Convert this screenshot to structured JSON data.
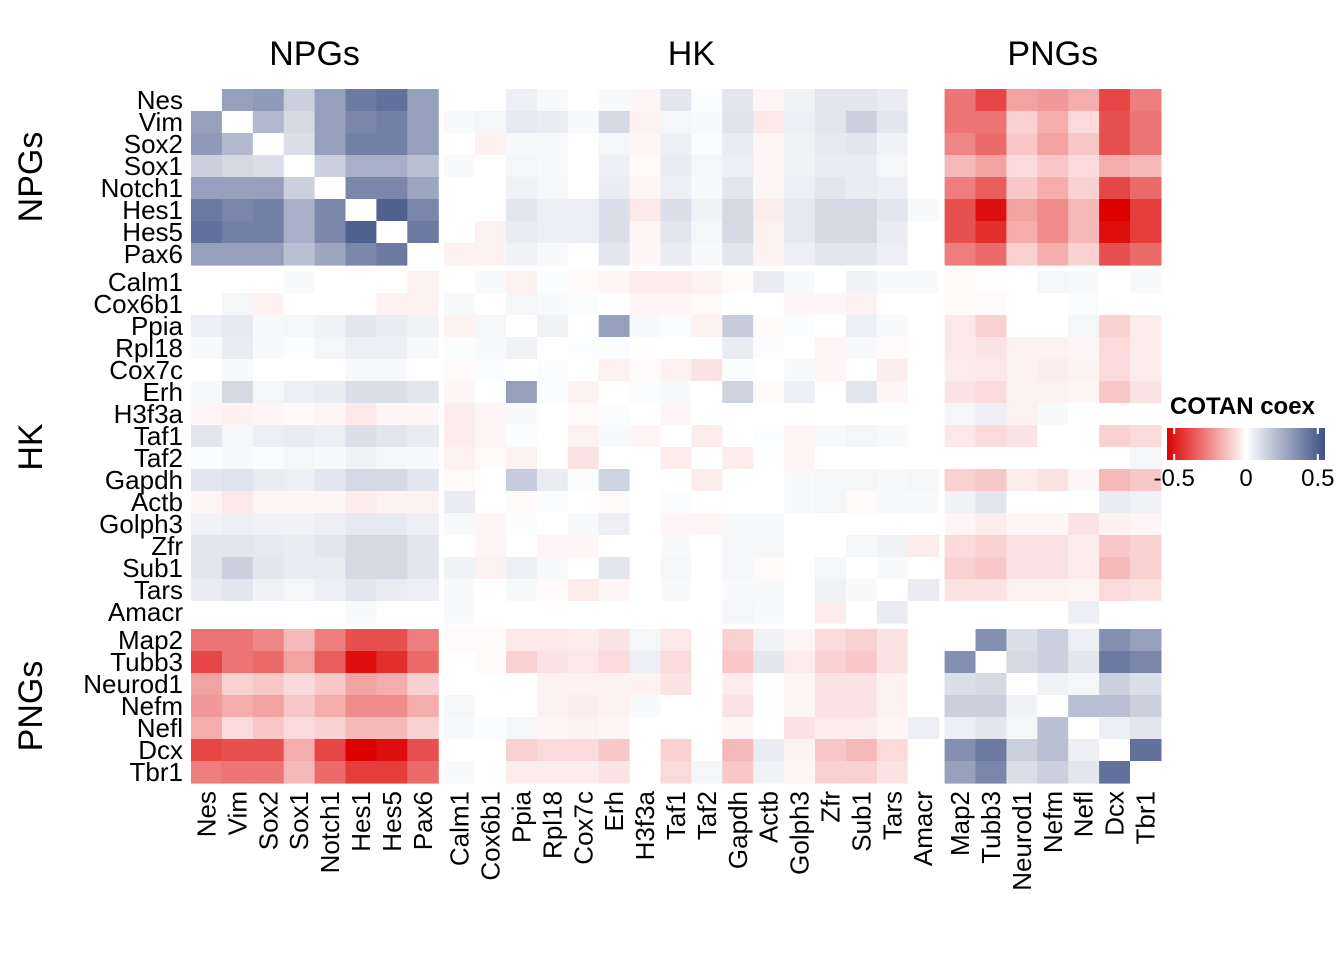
{
  "chart_data": {
    "type": "heatmap",
    "legend": {
      "title": "COTAN coex",
      "ticks": [
        -0.5,
        0,
        0.5
      ],
      "tick_labels": [
        "-0.5",
        "0",
        "0.5"
      ],
      "range": [
        -0.55,
        0.55
      ],
      "colors": {
        "low": "#dd0000",
        "mid": "#ffffff",
        "high": "#3e5185"
      }
    },
    "groups": [
      {
        "name": "NPGs",
        "genes": [
          "Nes",
          "Vim",
          "Sox2",
          "Sox1",
          "Notch1",
          "Hes1",
          "Hes5",
          "Pax6"
        ]
      },
      {
        "name": "HK",
        "genes": [
          "Calm1",
          "Cox6b1",
          "Ppia",
          "Rpl18",
          "Cox7c",
          "Erh",
          "H3f3a",
          "Taf1",
          "Taf2",
          "Gapdh",
          "Actb",
          "Golph3",
          "Zfr",
          "Sub1",
          "Tars",
          "Amacr"
        ]
      },
      {
        "name": "PNGs",
        "genes": [
          "Map2",
          "Tubb3",
          "Neurod1",
          "Nefm",
          "Nefl",
          "Dcx",
          "Tbr1"
        ]
      }
    ],
    "genes": [
      "Nes",
      "Vim",
      "Sox2",
      "Sox1",
      "Notch1",
      "Hes1",
      "Hes5",
      "Pax6",
      "Calm1",
      "Cox6b1",
      "Ppia",
      "Rpl18",
      "Cox7c",
      "Erh",
      "H3f3a",
      "Taf1",
      "Taf2",
      "Gapdh",
      "Actb",
      "Golph3",
      "Zfr",
      "Sub1",
      "Tars",
      "Amacr",
      "Map2",
      "Tubb3",
      "Neurod1",
      "Nefm",
      "Nefl",
      "Dcx",
      "Tbr1"
    ],
    "values": [
      [
        0,
        0.3,
        0.32,
        0.15,
        0.3,
        0.42,
        0.45,
        0.3,
        0,
        0,
        0.05,
        0.02,
        0,
        0.02,
        -0.02,
        0.08,
        0.01,
        0.08,
        -0.02,
        0.04,
        0.08,
        0.08,
        0.06,
        0,
        -0.3,
        -0.4,
        -0.2,
        -0.22,
        -0.18,
        -0.4,
        -0.28
      ],
      [
        0.3,
        0,
        0.22,
        0.12,
        0.3,
        0.38,
        0.4,
        0.3,
        0.02,
        0.03,
        0.07,
        0.06,
        0.02,
        0.12,
        -0.03,
        0.03,
        0.02,
        0.09,
        -0.05,
        0.05,
        0.08,
        0.15,
        0.08,
        0,
        -0.3,
        -0.3,
        -0.1,
        -0.18,
        -0.08,
        -0.38,
        -0.3
      ],
      [
        0.32,
        0.22,
        0,
        0.1,
        0.3,
        0.4,
        0.4,
        0.3,
        0,
        -0.03,
        0.02,
        0.02,
        0,
        0.03,
        -0.02,
        0.05,
        0.01,
        0.06,
        -0.02,
        0.04,
        0.07,
        0.08,
        0.04,
        0,
        -0.26,
        -0.32,
        -0.12,
        -0.2,
        -0.12,
        -0.38,
        -0.3
      ],
      [
        0.15,
        0.12,
        0.1,
        0,
        0.15,
        0.25,
        0.25,
        0.2,
        0.02,
        0,
        0.03,
        0.02,
        0,
        0.05,
        -0.01,
        0.06,
        0.03,
        0.05,
        -0.02,
        0.04,
        0.06,
        0.06,
        0.03,
        0,
        -0.15,
        -0.2,
        -0.08,
        -0.12,
        -0.08,
        -0.18,
        -0.15
      ],
      [
        0.3,
        0.3,
        0.3,
        0.15,
        0,
        0.38,
        0.38,
        0.28,
        0,
        0,
        0.04,
        0.03,
        0,
        0.06,
        -0.02,
        0.05,
        0.02,
        0.08,
        -0.02,
        0.05,
        0.08,
        0.06,
        0.05,
        0,
        -0.28,
        -0.35,
        -0.12,
        -0.18,
        -0.1,
        -0.4,
        -0.32
      ],
      [
        0.42,
        0.38,
        0.4,
        0.25,
        0.38,
        0,
        0.5,
        0.38,
        0,
        0,
        0.08,
        0.05,
        0.05,
        0.1,
        -0.05,
        0.1,
        0.04,
        0.12,
        -0.04,
        0.07,
        0.12,
        0.12,
        0.08,
        0.02,
        -0.38,
        -0.52,
        -0.2,
        -0.25,
        -0.15,
        -0.55,
        -0.42
      ],
      [
        0.45,
        0.4,
        0.4,
        0.25,
        0.38,
        0.5,
        0,
        0.42,
        0,
        -0.03,
        0.06,
        0.05,
        0.05,
        0.1,
        -0.02,
        0.08,
        0.03,
        0.12,
        -0.03,
        0.07,
        0.12,
        0.12,
        0.06,
        0,
        -0.38,
        -0.45,
        -0.18,
        -0.25,
        -0.15,
        -0.52,
        -0.42
      ],
      [
        0.3,
        0.3,
        0.3,
        0.2,
        0.28,
        0.38,
        0.42,
        0,
        -0.03,
        -0.03,
        0.04,
        0.02,
        0,
        0.08,
        -0.02,
        0.06,
        0.02,
        0.08,
        -0.03,
        0.05,
        0.08,
        0.08,
        0.05,
        0,
        -0.28,
        -0.32,
        -0.1,
        -0.18,
        -0.1,
        -0.38,
        -0.32
      ],
      [
        0,
        0,
        0,
        0.02,
        0,
        0,
        0,
        -0.03,
        0,
        0.02,
        -0.03,
        0.01,
        -0.01,
        -0.02,
        -0.04,
        -0.04,
        -0.03,
        -0.01,
        0.06,
        0.02,
        0,
        0.04,
        0.02,
        0.02,
        -0.01,
        0,
        0,
        0.03,
        0.02,
        0,
        0.02
      ],
      [
        0,
        0.03,
        -0.03,
        0,
        0,
        0,
        -0.03,
        -0.03,
        0.02,
        0,
        0.03,
        0.02,
        0.01,
        0,
        -0.02,
        -0.02,
        -0.01,
        0,
        0,
        -0.02,
        -0.02,
        -0.03,
        0,
        0,
        -0.01,
        -0.01,
        0,
        0,
        0.01,
        0,
        0
      ],
      [
        0.05,
        0.07,
        0.02,
        0.03,
        0.04,
        0.08,
        0.06,
        0.04,
        -0.03,
        0.03,
        0,
        0.04,
        0,
        0.3,
        0.02,
        0.01,
        -0.03,
        0.16,
        -0.01,
        0.01,
        0,
        0.05,
        0.02,
        0,
        -0.05,
        -0.1,
        0,
        0,
        0.03,
        -0.1,
        -0.04
      ],
      [
        0.02,
        0.06,
        0.02,
        0.01,
        0.03,
        0.05,
        0.05,
        0.02,
        0.01,
        0.02,
        0.04,
        0,
        0.01,
        0.01,
        0,
        0,
        0,
        0.06,
        0.01,
        0,
        -0.02,
        0.02,
        -0.01,
        0,
        -0.05,
        -0.06,
        -0.03,
        -0.03,
        -0.02,
        -0.08,
        -0.04
      ],
      [
        0,
        0.02,
        0,
        0,
        0,
        0.02,
        0.02,
        0,
        -0.01,
        0.01,
        0,
        0.01,
        0,
        -0.03,
        -0.01,
        -0.03,
        -0.06,
        0.01,
        0,
        0.02,
        -0.02,
        0,
        -0.04,
        0,
        -0.04,
        -0.05,
        -0.03,
        -0.04,
        -0.03,
        -0.08,
        -0.04
      ],
      [
        0.02,
        0.12,
        0.03,
        0.05,
        0.06,
        0.1,
        0.1,
        0.08,
        -0.02,
        0,
        0.3,
        0.01,
        -0.03,
        0,
        0.01,
        0.02,
        0,
        0.14,
        -0.01,
        0.05,
        0,
        0.08,
        -0.02,
        0,
        -0.06,
        -0.08,
        -0.03,
        -0.03,
        -0.02,
        -0.12,
        -0.06
      ],
      [
        -0.02,
        -0.03,
        -0.02,
        -0.01,
        -0.02,
        -0.05,
        -0.02,
        -0.02,
        -0.04,
        -0.02,
        0.02,
        0,
        -0.01,
        0.01,
        0,
        -0.02,
        0,
        0,
        0,
        0,
        0,
        0,
        0,
        0,
        0.03,
        0.05,
        -0.03,
        0.02,
        0,
        0,
        0
      ],
      [
        0.08,
        0.03,
        0.05,
        0.06,
        0.05,
        0.1,
        0.08,
        0.06,
        -0.04,
        -0.02,
        0.01,
        0,
        -0.03,
        0.02,
        -0.02,
        0,
        -0.04,
        0,
        0.01,
        -0.02,
        0.02,
        0.03,
        0.02,
        0,
        -0.05,
        -0.08,
        -0.06,
        0,
        0,
        -0.1,
        -0.08
      ],
      [
        0.01,
        0.02,
        0.01,
        0.03,
        0.02,
        0.04,
        0.03,
        0.02,
        -0.03,
        -0.01,
        -0.03,
        0,
        -0.06,
        0,
        0,
        -0.04,
        0,
        -0.04,
        0,
        -0.02,
        0,
        0,
        0,
        0,
        0,
        0,
        0,
        0,
        0,
        0,
        0.03
      ],
      [
        0.08,
        0.09,
        0.06,
        0.05,
        0.08,
        0.12,
        0.12,
        0.08,
        -0.01,
        0,
        0.16,
        0.06,
        0.01,
        0.14,
        0,
        0,
        -0.04,
        0,
        0,
        0.02,
        0.03,
        0.03,
        0.02,
        0.03,
        -0.1,
        -0.12,
        -0.04,
        -0.06,
        -0.02,
        -0.15,
        -0.12
      ],
      [
        -0.02,
        -0.05,
        -0.02,
        -0.02,
        -0.02,
        -0.04,
        -0.03,
        -0.03,
        0.06,
        0,
        -0.01,
        0.01,
        0,
        -0.01,
        0,
        0.01,
        0,
        0,
        0,
        0.02,
        0.03,
        -0.01,
        0.02,
        0.02,
        0.04,
        0.08,
        0,
        0,
        0,
        0.06,
        0.04
      ],
      [
        0.04,
        0.05,
        0.04,
        0.04,
        0.05,
        0.07,
        0.07,
        0.05,
        0.02,
        -0.02,
        0.01,
        0,
        0.02,
        0.05,
        0,
        -0.02,
        -0.02,
        0.02,
        0.02,
        0,
        0,
        0,
        0,
        0,
        -0.02,
        -0.04,
        -0.02,
        -0.02,
        -0.06,
        -0.03,
        -0.02
      ],
      [
        0.08,
        0.08,
        0.07,
        0.06,
        0.08,
        0.12,
        0.12,
        0.08,
        0,
        -0.02,
        0,
        -0.02,
        -0.02,
        0,
        0,
        0.02,
        0,
        0.03,
        0.03,
        0,
        0,
        0.03,
        0.04,
        -0.04,
        -0.08,
        -0.1,
        -0.06,
        -0.06,
        -0.04,
        -0.12,
        -0.1
      ],
      [
        0.08,
        0.15,
        0.08,
        0.06,
        0.06,
        0.12,
        0.12,
        0.08,
        0.04,
        -0.03,
        0.05,
        0.02,
        0,
        0.08,
        0,
        0.03,
        0,
        0.03,
        -0.01,
        0,
        0.03,
        0,
        0.02,
        0,
        -0.1,
        -0.12,
        -0.06,
        -0.06,
        -0.04,
        -0.15,
        -0.1
      ],
      [
        0.06,
        0.08,
        0.04,
        0.03,
        0.05,
        0.08,
        0.06,
        0.05,
        0.02,
        0,
        0.02,
        -0.01,
        -0.04,
        -0.02,
        0,
        0.02,
        0,
        0.02,
        0.02,
        0,
        0.04,
        0.02,
        0,
        0.06,
        -0.06,
        -0.06,
        -0.03,
        -0.03,
        -0.02,
        -0.08,
        -0.06
      ],
      [
        0,
        0,
        0,
        0,
        0,
        0.02,
        0,
        0,
        0.02,
        0,
        0,
        0,
        0,
        0,
        0,
        0,
        0,
        0.03,
        0.02,
        0,
        -0.04,
        0,
        0.06,
        0,
        0,
        0,
        0,
        0,
        0.05,
        0,
        0
      ],
      [
        -0.3,
        -0.3,
        -0.26,
        -0.15,
        -0.28,
        -0.38,
        -0.38,
        -0.28,
        -0.01,
        -0.01,
        -0.05,
        -0.05,
        -0.04,
        -0.06,
        0.03,
        -0.05,
        0,
        -0.1,
        0.04,
        -0.02,
        -0.08,
        -0.1,
        -0.06,
        0,
        0,
        0.35,
        0.1,
        0.15,
        0.05,
        0.35,
        0.3
      ],
      [
        -0.4,
        -0.3,
        -0.32,
        -0.2,
        -0.35,
        -0.52,
        -0.45,
        -0.32,
        0,
        -0.01,
        -0.1,
        -0.06,
        -0.05,
        -0.08,
        0.05,
        -0.08,
        0,
        -0.12,
        0.08,
        -0.04,
        -0.1,
        -0.12,
        -0.06,
        0,
        0.35,
        0,
        0.12,
        0.15,
        0.08,
        0.42,
        0.38
      ],
      [
        -0.2,
        -0.1,
        -0.12,
        -0.08,
        -0.12,
        -0.2,
        -0.18,
        -0.1,
        0,
        0,
        0,
        -0.03,
        -0.03,
        -0.03,
        -0.03,
        -0.06,
        0,
        -0.04,
        0,
        -0.02,
        -0.06,
        -0.06,
        -0.03,
        0,
        0.1,
        0.12,
        0,
        0.04,
        0.03,
        0.15,
        0.1
      ],
      [
        -0.22,
        -0.18,
        -0.2,
        -0.12,
        -0.18,
        -0.25,
        -0.25,
        -0.18,
        0.03,
        0,
        0,
        -0.03,
        -0.04,
        -0.03,
        0.02,
        0,
        0,
        -0.06,
        0,
        -0.02,
        -0.06,
        -0.06,
        -0.03,
        0,
        0.15,
        0.15,
        0.04,
        0,
        0.2,
        0.2,
        0.15
      ],
      [
        -0.18,
        -0.08,
        -0.12,
        -0.08,
        -0.1,
        -0.15,
        -0.15,
        -0.1,
        0.02,
        0.01,
        0.03,
        -0.02,
        -0.03,
        -0.02,
        0,
        0,
        0,
        -0.02,
        0,
        -0.06,
        -0.04,
        -0.04,
        -0.02,
        0.05,
        0.05,
        0.08,
        0.03,
        0.2,
        0,
        0.05,
        0.08
      ],
      [
        -0.4,
        -0.38,
        -0.38,
        -0.18,
        -0.4,
        -0.55,
        -0.52,
        -0.38,
        0,
        0,
        -0.1,
        -0.08,
        -0.08,
        -0.12,
        0,
        -0.1,
        0,
        -0.15,
        0.06,
        -0.03,
        -0.12,
        -0.15,
        -0.08,
        0,
        0.35,
        0.42,
        0.15,
        0.2,
        0.05,
        0,
        0.45
      ],
      [
        -0.28,
        -0.3,
        -0.3,
        -0.15,
        -0.32,
        -0.42,
        -0.42,
        -0.32,
        0.02,
        0,
        -0.04,
        -0.04,
        -0.04,
        -0.06,
        0,
        -0.08,
        0.03,
        -0.12,
        0.04,
        -0.02,
        -0.1,
        -0.1,
        -0.06,
        0,
        0.3,
        0.38,
        0.1,
        0.15,
        0.08,
        0.45,
        0
      ]
    ]
  }
}
